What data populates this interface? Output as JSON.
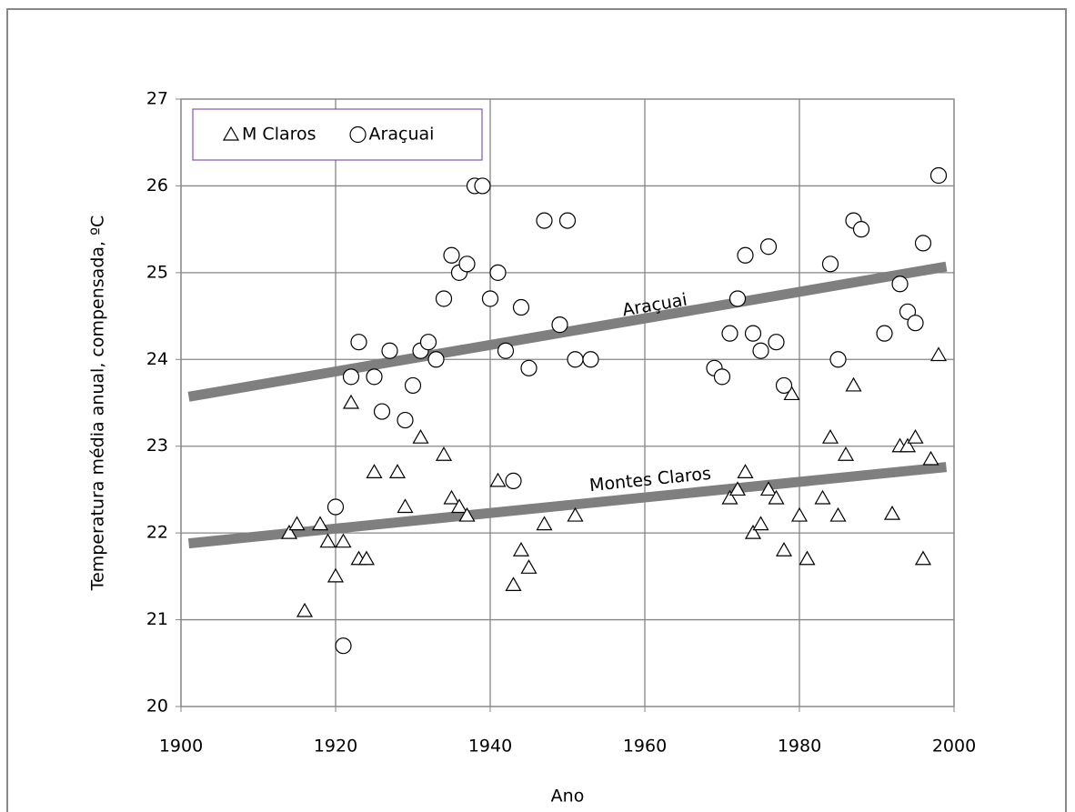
{
  "chart_data": {
    "type": "scatter",
    "xlabel": "Ano",
    "ylabel": "Temperatura média anual, compensada, ºC",
    "xlim": [
      1900,
      2000
    ],
    "xticks": [
      1900,
      1920,
      1940,
      1960,
      1980,
      2000
    ],
    "ylim": [
      20,
      27
    ],
    "yticks": [
      20,
      21,
      22,
      23,
      24,
      25,
      26,
      27
    ],
    "grid": true,
    "legend": "upper left",
    "series": [
      {
        "name": "M Claros",
        "marker": "triangle",
        "color": "#000000",
        "x": [
          1914,
          1915,
          1916,
          1918,
          1919,
          1920,
          1921,
          1922,
          1923,
          1924,
          1925,
          1928,
          1929,
          1931,
          1934,
          1935,
          1936,
          1937,
          1941,
          1943,
          1944,
          1945,
          1947,
          1951,
          1971,
          1972,
          1973,
          1974,
          1975,
          1976,
          1977,
          1978,
          1979,
          1980,
          1981,
          1983,
          1984,
          1985,
          1986,
          1987,
          1992,
          1993,
          1994,
          1995,
          1996,
          1997,
          1998
        ],
        "values": [
          22.0,
          22.1,
          21.1,
          22.1,
          21.9,
          21.5,
          21.9,
          23.5,
          21.7,
          21.7,
          22.7,
          22.7,
          22.3,
          23.1,
          22.9,
          22.4,
          22.3,
          22.2,
          22.6,
          21.4,
          21.8,
          21.6,
          22.1,
          22.2,
          22.4,
          22.5,
          22.7,
          22.0,
          22.1,
          22.5,
          22.4,
          21.8,
          23.6,
          22.2,
          21.7,
          22.4,
          23.1,
          22.2,
          22.9,
          23.7,
          22.22,
          23.0,
          23.0,
          23.1,
          21.7,
          22.85,
          24.05
        ]
      },
      {
        "name": "Araçuai",
        "marker": "circle",
        "color": "#000000",
        "x": [
          1920,
          1921,
          1922,
          1923,
          1925,
          1926,
          1927,
          1929,
          1930,
          1931,
          1932,
          1933,
          1934,
          1935,
          1936,
          1937,
          1938,
          1939,
          1940,
          1941,
          1942,
          1943,
          1944,
          1945,
          1947,
          1949,
          1950,
          1951,
          1953,
          1969,
          1970,
          1971,
          1972,
          1973,
          1974,
          1975,
          1976,
          1977,
          1978,
          1984,
          1985,
          1987,
          1988,
          1991,
          1993,
          1994,
          1995,
          1996,
          1998
        ],
        "values": [
          22.3,
          20.7,
          23.8,
          24.2,
          23.8,
          23.4,
          24.1,
          23.3,
          23.7,
          24.1,
          24.2,
          24.0,
          24.7,
          25.2,
          25.0,
          25.1,
          26.0,
          26.0,
          24.7,
          25.0,
          24.1,
          22.6,
          24.6,
          23.9,
          25.6,
          24.4,
          25.6,
          24.0,
          24.0,
          23.9,
          23.8,
          24.3,
          24.7,
          25.2,
          24.3,
          24.1,
          25.3,
          24.2,
          23.7,
          25.1,
          24.0,
          25.6,
          25.5,
          24.3,
          24.87,
          24.55,
          24.42,
          25.34,
          26.12
        ]
      }
    ],
    "trendlines": [
      {
        "label": "Araçuai",
        "color": "#7f7f7f",
        "x": [
          1901,
          1999
        ],
        "values": [
          23.57,
          25.07
        ]
      },
      {
        "label": "Montes  Claros",
        "color": "#7f7f7f",
        "x": [
          1901,
          1999
        ],
        "values": [
          21.88,
          22.76
        ]
      }
    ]
  }
}
